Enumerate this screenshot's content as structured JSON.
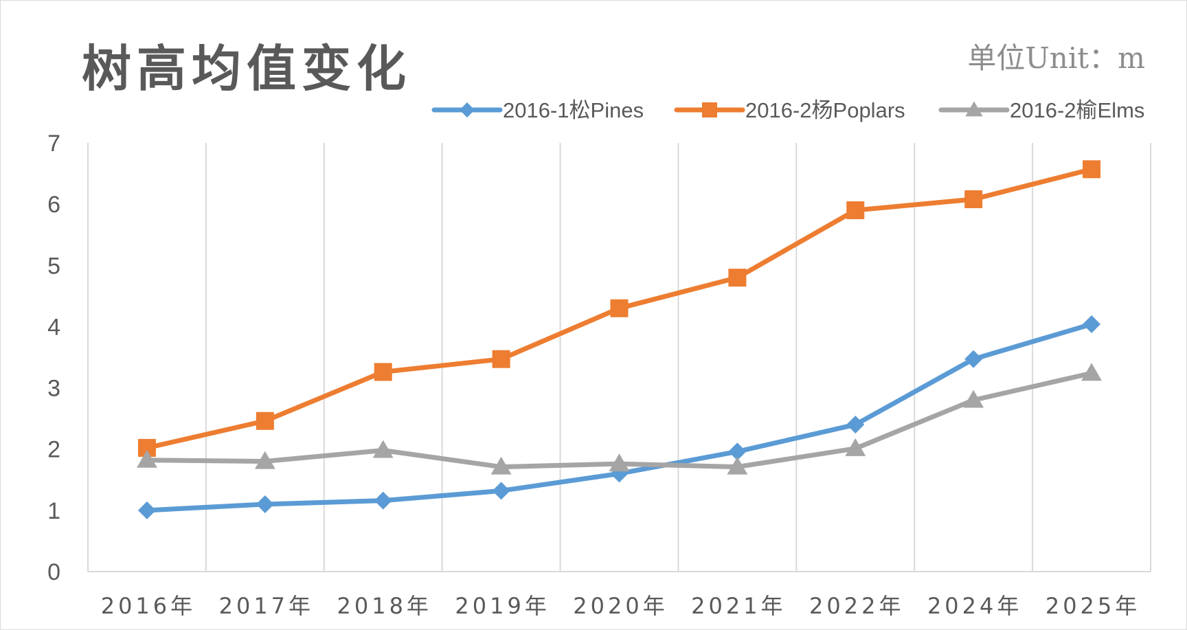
{
  "chart_data": {
    "type": "line",
    "title": "树高均值变化",
    "unit_label": "单位Unit：m",
    "categories": [
      "2016年",
      "2017年",
      "2018年",
      "2019年",
      "2020年",
      "2021年",
      "2022年",
      "2024年",
      "2025年"
    ],
    "ylim": [
      0,
      7
    ],
    "yticks": [
      "0",
      "1",
      "2",
      "3",
      "4",
      "5",
      "6",
      "7"
    ],
    "grid": "vertical",
    "legend_position": "top-right",
    "series": [
      {
        "name": "2016-1松Pines",
        "color": "#5b9bd5",
        "marker": "diamond",
        "values": [
          1.0,
          1.1,
          1.16,
          1.32,
          1.6,
          1.96,
          2.4,
          3.47,
          4.04
        ]
      },
      {
        "name": "2016-2杨Poplars",
        "color": "#ed7d31",
        "marker": "square",
        "values": [
          2.02,
          2.46,
          3.26,
          3.47,
          4.3,
          4.8,
          5.9,
          6.08,
          6.57
        ]
      },
      {
        "name": "2016-2榆Elms",
        "color": "#a5a5a5",
        "marker": "triangle",
        "values": [
          1.82,
          1.8,
          1.98,
          1.71,
          1.76,
          1.71,
          2.01,
          2.8,
          3.24
        ]
      }
    ]
  }
}
